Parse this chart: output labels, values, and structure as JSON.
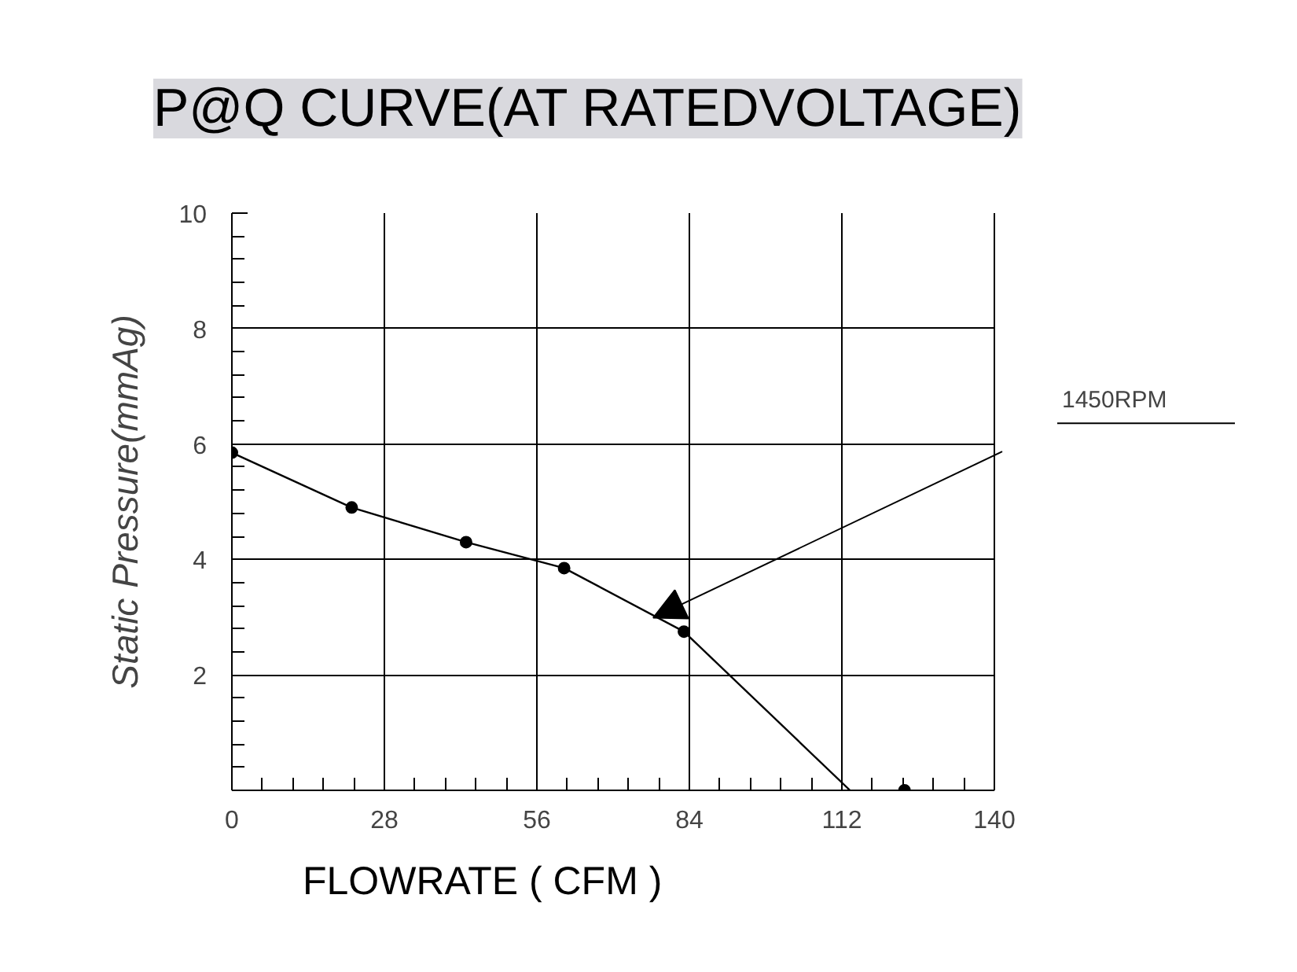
{
  "chart_data": {
    "type": "line",
    "title": "P@Q CURVE(AT RATEDVOLTAGE)",
    "xlabel": "FLOWRATE ( CFM )",
    "ylabel": "Static Pressure(mmAg)",
    "series": [
      {
        "type": "line",
        "color": "#000000",
        "marker": "none",
        "x": [
          0,
          22,
          43,
          61,
          83,
          113.5
        ],
        "values": [
          5.85,
          4.9,
          4.3,
          3.85,
          2.75,
          0
        ]
      },
      {
        "type": "scatter",
        "color": "#000000",
        "marker": "circle",
        "x": [
          0,
          22,
          43,
          61,
          83,
          123.5
        ],
        "values": [
          5.85,
          4.9,
          4.3,
          3.85,
          2.75,
          0
        ]
      }
    ],
    "xlim": [
      0,
      140
    ],
    "ylim": [
      0,
      10
    ],
    "xticks": [
      0,
      28,
      56,
      84,
      112,
      140
    ],
    "yticks": [
      {
        "value": 0,
        "label": null
      },
      2,
      4,
      6,
      8,
      10
    ],
    "grid": true,
    "line_style": "solid",
    "annotations": [
      "1450RPM"
    ]
  }
}
